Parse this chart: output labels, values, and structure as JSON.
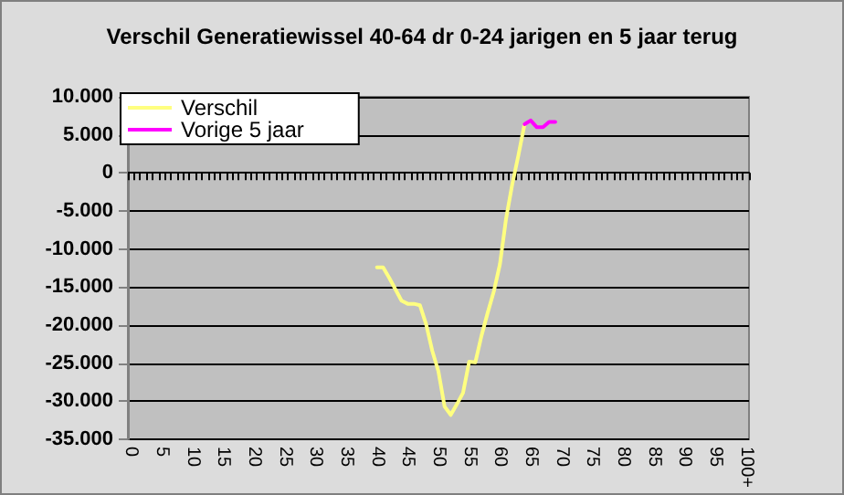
{
  "chart_data": {
    "type": "line",
    "title": "Verschil Generatiewissel 40-64 dr 0-24 jarigen en 5 jaar terug",
    "categories": [
      "0",
      null,
      null,
      null,
      null,
      "5",
      null,
      null,
      null,
      null,
      "10",
      null,
      null,
      null,
      null,
      "15",
      null,
      null,
      null,
      null,
      "20",
      null,
      null,
      null,
      null,
      "25",
      null,
      null,
      null,
      null,
      "30",
      null,
      null,
      null,
      null,
      "35",
      null,
      null,
      null,
      null,
      "40",
      null,
      null,
      null,
      null,
      "45",
      null,
      null,
      null,
      null,
      "50",
      null,
      null,
      null,
      null,
      "55",
      null,
      null,
      null,
      null,
      "60",
      null,
      null,
      null,
      null,
      "65",
      null,
      null,
      null,
      null,
      "70",
      null,
      null,
      null,
      null,
      "75",
      null,
      null,
      null,
      null,
      "80",
      null,
      null,
      null,
      null,
      "85",
      null,
      null,
      null,
      null,
      "90",
      null,
      null,
      null,
      null,
      "95",
      null,
      null,
      null,
      null,
      "100+"
    ],
    "series": [
      {
        "name": "Verschil",
        "color": "#ffff80",
        "values": [
          null,
          null,
          null,
          null,
          null,
          null,
          null,
          null,
          null,
          null,
          null,
          null,
          null,
          null,
          null,
          null,
          null,
          null,
          null,
          null,
          null,
          null,
          null,
          null,
          null,
          null,
          null,
          null,
          null,
          null,
          null,
          null,
          null,
          null,
          null,
          null,
          null,
          null,
          null,
          null,
          -12400,
          -12400,
          -13800,
          -15300,
          -16800,
          -17200,
          -17200,
          -17400,
          -19900,
          -23400,
          -26100,
          -30700,
          -31800,
          -30400,
          -28900,
          -24800,
          -24900,
          -21400,
          -18400,
          -15600,
          -12000,
          -6000,
          -1500,
          2300,
          6400,
          null,
          null,
          null,
          null,
          null,
          null,
          null,
          null,
          null,
          null,
          null,
          null,
          null,
          null,
          null,
          null,
          null,
          null,
          null,
          null,
          null,
          null,
          null,
          null,
          null,
          null,
          null,
          null,
          null,
          null,
          null,
          null,
          null,
          null,
          null,
          null
        ]
      },
      {
        "name": "Vorige 5 jaar",
        "color": "#ff00ff",
        "values": [
          null,
          null,
          null,
          null,
          null,
          null,
          null,
          null,
          null,
          null,
          null,
          null,
          null,
          null,
          null,
          null,
          null,
          null,
          null,
          null,
          null,
          null,
          null,
          null,
          null,
          null,
          null,
          null,
          null,
          null,
          null,
          null,
          null,
          null,
          null,
          null,
          null,
          null,
          null,
          null,
          null,
          null,
          null,
          null,
          null,
          null,
          null,
          null,
          null,
          null,
          null,
          null,
          null,
          null,
          null,
          null,
          null,
          null,
          null,
          null,
          null,
          null,
          null,
          null,
          6400,
          6900,
          6000,
          6000,
          6700,
          6700,
          null,
          null,
          null,
          null,
          null,
          null,
          null,
          null,
          null,
          null,
          null,
          null,
          null,
          null,
          null,
          null,
          null,
          null,
          null,
          null,
          null,
          null,
          null,
          null,
          null,
          null,
          null,
          null,
          null,
          null,
          null
        ]
      }
    ],
    "ylim": [
      -35000,
      10000
    ],
    "yticks": [
      {
        "value": -35000,
        "label": "-35.000"
      },
      {
        "value": -30000,
        "label": "-30.000"
      },
      {
        "value": -25000,
        "label": "-25.000"
      },
      {
        "value": -20000,
        "label": "-20.000"
      },
      {
        "value": -15000,
        "label": "-15.000"
      },
      {
        "value": -10000,
        "label": "-10.000"
      },
      {
        "value": -5000,
        "label": "-5.000"
      },
      {
        "value": 0,
        "label": "0"
      },
      {
        "value": 5000,
        "label": "5.000"
      },
      {
        "value": 10000,
        "label": "10.000"
      }
    ],
    "grid": "y",
    "legend": "top left",
    "marker": "none",
    "line_style": "solid"
  }
}
